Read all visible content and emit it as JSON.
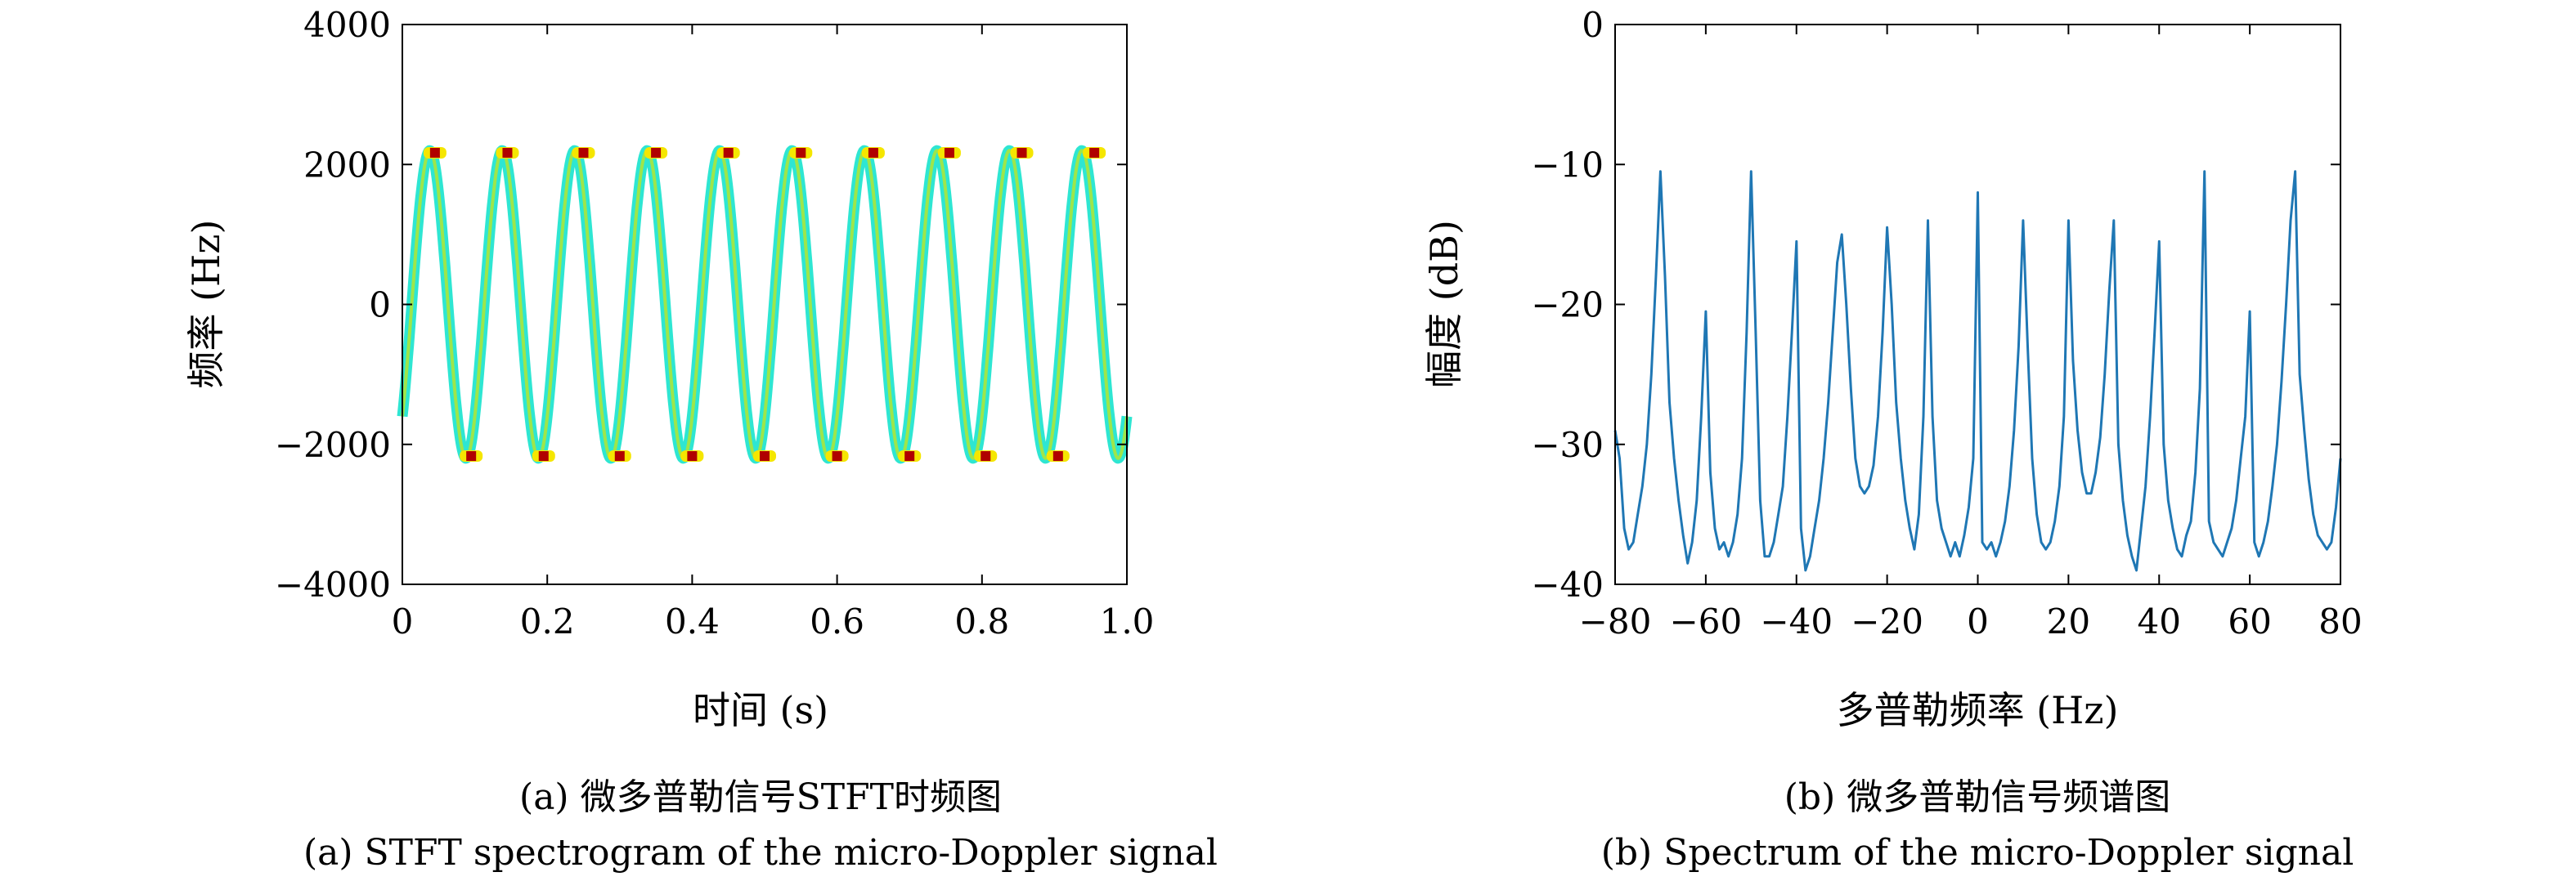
{
  "chart_data": [
    {
      "type": "spectrogram",
      "xlabel": "时间 (s)",
      "ylabel": "频率 (Hz)",
      "xlim": [
        0,
        1.0
      ],
      "ylim": [
        -4000,
        4000
      ],
      "xticks": [
        0,
        0.2,
        0.4,
        0.6,
        0.8,
        1.0
      ],
      "xtick_labels": [
        "0",
        "0.2",
        "0.4",
        "0.6",
        "0.8",
        "1.0"
      ],
      "yticks": [
        4000,
        2000,
        0,
        -2000,
        -4000
      ],
      "ytick_labels": [
        "4000",
        "2000",
        "0",
        "−2000",
        "−4000"
      ],
      "signal": {
        "amplitude_hz": 2200,
        "modulation_frequency_hz": 10,
        "phase": "starts near -1600 Hz rising"
      },
      "peak_times": [
        0.045,
        0.145,
        0.25,
        0.35,
        0.45,
        0.55,
        0.65,
        0.755,
        0.855,
        0.955
      ],
      "trough_times": [
        0.095,
        0.195,
        0.3,
        0.4,
        0.5,
        0.6,
        0.7,
        0.805,
        0.905
      ],
      "colors": {
        "ridge_outer": "#2ee6d2",
        "ridge_inner": "#9ee64a",
        "peak_halo": "#f5e600",
        "peak_core": "#b00000"
      },
      "caption_zh": "(a) 微多普勒信号STFT时频图",
      "caption_en": "(a) STFT spectrogram of the micro-Doppler signal"
    },
    {
      "type": "line",
      "xlabel": "多普勒频率 (Hz)",
      "ylabel": "幅度 (dB)",
      "xlim": [
        -80,
        80
      ],
      "ylim": [
        -40,
        0
      ],
      "xticks": [
        -80,
        -60,
        -40,
        -20,
        0,
        20,
        40,
        60,
        80
      ],
      "xtick_labels": [
        "−80",
        "−60",
        "−40",
        "−20",
        "0",
        "20",
        "40",
        "60",
        "80"
      ],
      "yticks": [
        0,
        -10,
        -20,
        -30,
        -40
      ],
      "ytick_labels": [
        "0",
        "−10",
        "−20",
        "−30",
        "−40"
      ],
      "series": [
        {
          "color": "#1f77b4",
          "x": [
            -80,
            -79,
            -78,
            -77,
            -76,
            -75,
            -74,
            -73,
            -72,
            -71,
            -70,
            -69,
            -68,
            -67,
            -66,
            -65,
            -64,
            -63,
            -62,
            -61,
            -60,
            -59,
            -58,
            -57,
            -56,
            -55,
            -54,
            -53,
            -52,
            -51,
            -50,
            -49,
            -48,
            -47,
            -46,
            -45,
            -44,
            -43,
            -42,
            -41,
            -40,
            -39,
            -38,
            -37,
            -36,
            -35,
            -34,
            -33,
            -32,
            -31,
            -30,
            -29,
            -28,
            -27,
            -26,
            -25,
            -24,
            -23,
            -22,
            -21,
            -20,
            -19,
            -18,
            -17,
            -16,
            -15,
            -14,
            -13,
            -12,
            -11,
            -10,
            -9,
            -8,
            -7,
            -6,
            -5,
            -4,
            -3,
            -2,
            -1,
            0,
            1,
            2,
            3,
            4,
            5,
            6,
            7,
            8,
            9,
            10,
            11,
            12,
            13,
            14,
            15,
            16,
            17,
            18,
            19,
            20,
            21,
            22,
            23,
            24,
            25,
            26,
            27,
            28,
            29,
            30,
            31,
            32,
            33,
            34,
            35,
            36,
            37,
            38,
            39,
            40,
            41,
            42,
            43,
            44,
            45,
            46,
            47,
            48,
            49,
            50,
            51,
            52,
            53,
            54,
            55,
            56,
            57,
            58,
            59,
            60,
            61,
            62,
            63,
            64,
            65,
            66,
            67,
            68,
            69,
            70,
            71,
            72,
            73,
            74,
            75,
            76,
            77,
            78,
            79,
            80
          ],
          "values": [
            -29,
            -31,
            -36,
            -37.5,
            -37,
            -35,
            -33,
            -30,
            -25,
            -18,
            -10.5,
            -18,
            -27,
            -31,
            -34,
            -36.5,
            -38.5,
            -37,
            -34,
            -28,
            -20.5,
            -32,
            -36,
            -37.5,
            -37,
            -38,
            -37,
            -35,
            -31,
            -22,
            -10.5,
            -22,
            -34,
            -38,
            -38,
            -37,
            -35,
            -33,
            -28,
            -22,
            -15.5,
            -36,
            -39,
            -38,
            -36,
            -34,
            -31,
            -27,
            -22,
            -17,
            -15,
            -20,
            -26,
            -31,
            -33,
            -33.5,
            -33,
            -31.5,
            -28,
            -22,
            -14.5,
            -20,
            -27,
            -31,
            -34,
            -36,
            -37.5,
            -35,
            -28,
            -14,
            -28,
            -34,
            -36,
            -37,
            -38,
            -37,
            -38,
            -36.5,
            -34.5,
            -31,
            -12,
            -37,
            -37.5,
            -37,
            -38,
            -37,
            -35.5,
            -33,
            -29,
            -23,
            -14,
            -23,
            -31,
            -35,
            -37,
            -37.5,
            -37,
            -35.5,
            -33,
            -28,
            -14,
            -24,
            -29,
            -32,
            -33.5,
            -33.5,
            -32,
            -29.5,
            -25,
            -19,
            -14,
            -30,
            -34,
            -36.5,
            -38,
            -39,
            -36,
            -33,
            -28,
            -22,
            -15.5,
            -30,
            -34,
            -36,
            -37.5,
            -38,
            -36.5,
            -35.5,
            -32,
            -26,
            -10.5,
            -35.5,
            -37,
            -37.5,
            -38,
            -37,
            -36,
            -34,
            -31,
            -28,
            -20.5,
            -37,
            -38,
            -37,
            -35.5,
            -33,
            -30,
            -25.5,
            -20,
            -14,
            -10.5,
            -25,
            -29,
            -32.5,
            -35,
            -36.5,
            -37,
            -37.5,
            -37,
            -34.5,
            -31
          ]
        }
      ],
      "caption_zh": "(b) 微多普勒信号频谱图",
      "caption_en": "(b) Spectrum of the micro-Doppler signal"
    }
  ]
}
